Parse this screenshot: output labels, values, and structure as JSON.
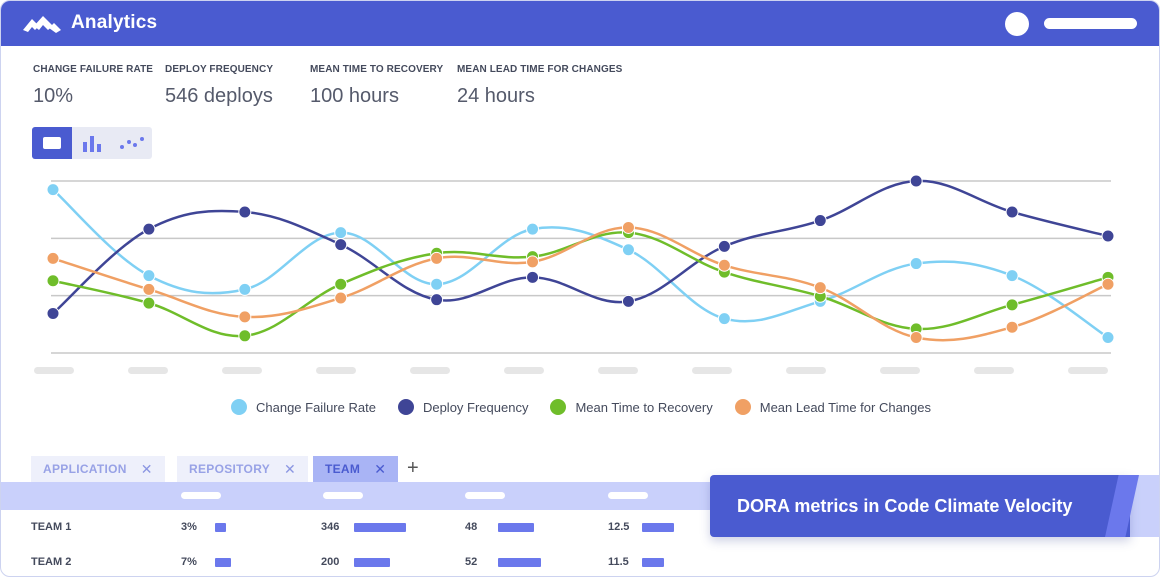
{
  "header": {
    "title": "Analytics"
  },
  "metrics": [
    {
      "label": "CHANGE FAILURE RATE",
      "value": "10%"
    },
    {
      "label": "DEPLOY FREQUENCY",
      "value": "546 deploys"
    },
    {
      "label": "MEAN TIME TO RECOVERY",
      "value": "100 hours"
    },
    {
      "label": "MEAN LEAD TIME FOR CHANGES",
      "value": "24 hours"
    }
  ],
  "view_switcher": {
    "icons": [
      "card-view-icon",
      "bar-chart-icon",
      "scatter-plot-icon"
    ],
    "active": 0
  },
  "colors": {
    "brand": "#4a5bd0",
    "change_failure_rate": "#7fd0f4",
    "deploy_frequency": "#3f4596",
    "mean_time_to_recovery": "#6fbd2a",
    "mean_lead_time": "#f0a064"
  },
  "chart_data": {
    "type": "line",
    "x_count": 12,
    "ylim": [
      0,
      100
    ],
    "grid": true,
    "legend_position": "bottom",
    "series": [
      {
        "name": "Change Failure Rate",
        "color": "#7fd0f4",
        "values": [
          95,
          45,
          37,
          70,
          40,
          72,
          60,
          20,
          30,
          52,
          45,
          9
        ]
      },
      {
        "name": "Deploy Frequency",
        "color": "#3f4596",
        "values": [
          23,
          72,
          82,
          63,
          31,
          44,
          30,
          62,
          77,
          100,
          82,
          68
        ]
      },
      {
        "name": "Mean Time to Recovery",
        "color": "#6fbd2a",
        "values": [
          42,
          29,
          10,
          40,
          58,
          56,
          70,
          47,
          33,
          14,
          28,
          44
        ]
      },
      {
        "name": "Mean Lead Time for Changes",
        "color": "#f0a064",
        "values": [
          55,
          37,
          21,
          32,
          55,
          53,
          73,
          51,
          38,
          9,
          15,
          40
        ]
      }
    ]
  },
  "filters": [
    {
      "label": "APPLICATION",
      "active": false
    },
    {
      "label": "REPOSITORY",
      "active": false
    },
    {
      "label": "TEAM",
      "active": true
    }
  ],
  "add_filter_label": "+",
  "table": {
    "rows": [
      {
        "name": "TEAM 1",
        "cfr": "3%",
        "cfr_level": 0.15,
        "deploys": "346",
        "deploys_level": 0.9,
        "mttr": "48",
        "mttr_level": 0.6,
        "lead": "12.5",
        "lead_level": 0.55
      },
      {
        "name": "TEAM 2",
        "cfr": "7%",
        "cfr_level": 0.28,
        "deploys": "200",
        "deploys_level": 0.62,
        "mttr": "52",
        "mttr_level": 0.72,
        "lead": "11.5",
        "lead_level": 0.38
      }
    ]
  },
  "banner": {
    "text": "DORA metrics in Code Climate Velocity"
  }
}
